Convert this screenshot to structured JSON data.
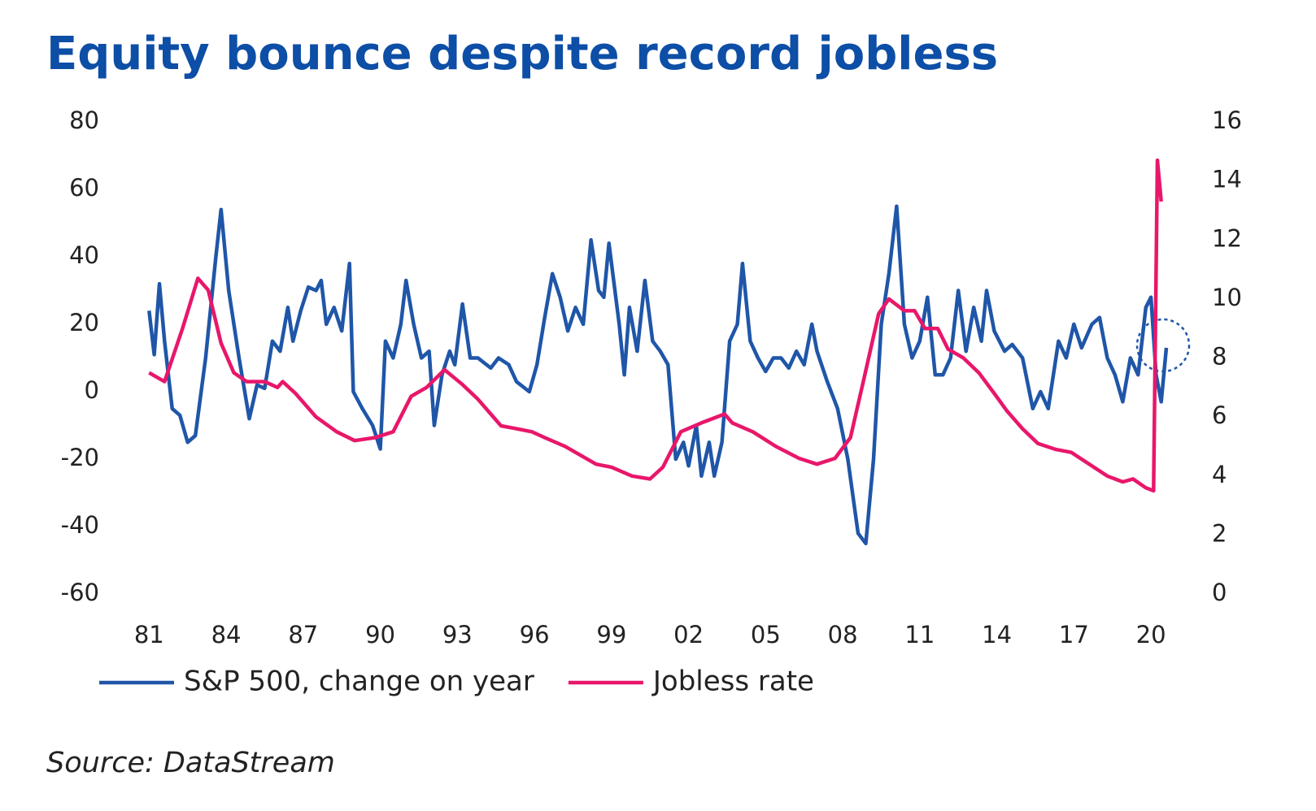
{
  "chart_data": {
    "type": "line",
    "title": "Equity bounce despite record jobless",
    "source": "Source: DataStream",
    "xlim": [
      1980.8,
      2021.2
    ],
    "xticks": [
      {
        "value": 1981,
        "label": "81"
      },
      {
        "value": 1984,
        "label": "84"
      },
      {
        "value": 1987,
        "label": "87"
      },
      {
        "value": 1990,
        "label": "90"
      },
      {
        "value": 1993,
        "label": "93"
      },
      {
        "value": 1996,
        "label": "96"
      },
      {
        "value": 1999,
        "label": "99"
      },
      {
        "value": 2002,
        "label": "02"
      },
      {
        "value": 2005,
        "label": "05"
      },
      {
        "value": 2008,
        "label": "08"
      },
      {
        "value": 2011,
        "label": "11"
      },
      {
        "value": 2014,
        "label": "14"
      },
      {
        "value": 2017,
        "label": "17"
      },
      {
        "value": 2020,
        "label": "20"
      }
    ],
    "ylim": [
      -60,
      80
    ],
    "yticks": [
      -60,
      -40,
      -20,
      0,
      20,
      40,
      60,
      80
    ],
    "y2lim": [
      0,
      16
    ],
    "y2ticks": [
      0,
      2,
      4,
      6,
      8,
      10,
      12,
      14,
      16
    ],
    "grid": false,
    "series": [
      {
        "name": "S&P 500, change on year",
        "color": "#1f56a8",
        "x": [
          1981.0,
          1981.2,
          1981.4,
          1981.6,
          1981.9,
          1982.2,
          1982.5,
          1982.8,
          1983.2,
          1983.6,
          1983.8,
          1984.1,
          1984.5,
          1984.9,
          1985.2,
          1985.5,
          1985.8,
          1986.1,
          1986.4,
          1986.6,
          1986.9,
          1987.2,
          1987.5,
          1987.7,
          1987.9,
          1988.2,
          1988.5,
          1988.8,
          1988.95,
          1989.3,
          1989.7,
          1990.0,
          1990.2,
          1990.5,
          1990.8,
          1991.0,
          1991.3,
          1991.6,
          1991.9,
          1992.1,
          1992.4,
          1992.7,
          1992.9,
          1993.2,
          1993.5,
          1993.8,
          1994.3,
          1994.6,
          1995.0,
          1995.3,
          1995.8,
          1996.1,
          1996.4,
          1996.7,
          1997.0,
          1997.3,
          1997.6,
          1997.9,
          1998.2,
          1998.5,
          1998.7,
          1998.9,
          1999.3,
          1999.5,
          1999.7,
          2000.0,
          2000.3,
          2000.6,
          2000.9,
          2001.2,
          2001.5,
          2001.8,
          2002.0,
          2002.3,
          2002.5,
          2002.8,
          2003.0,
          2003.3,
          2003.6,
          2003.9,
          2004.1,
          2004.4,
          2004.7,
          2005.0,
          2005.3,
          2005.6,
          2005.9,
          2006.2,
          2006.5,
          2006.8,
          2007.0,
          2007.4,
          2007.8,
          2008.2,
          2008.6,
          2008.9,
          2009.2,
          2009.5,
          2009.8,
          2010.1,
          2010.4,
          2010.7,
          2011.0,
          2011.3,
          2011.6,
          2011.9,
          2012.2,
          2012.5,
          2012.8,
          2013.1,
          2013.4,
          2013.6,
          2013.9,
          2014.3,
          2014.6,
          2015.0,
          2015.4,
          2015.7,
          2016.0,
          2016.4,
          2016.7,
          2017.0,
          2017.3,
          2017.7,
          2018.0,
          2018.3,
          2018.6,
          2018.9,
          2019.2,
          2019.5,
          2019.8,
          2020.0,
          2020.2,
          2020.4,
          2020.6
        ],
        "values": [
          24,
          11,
          32,
          15,
          -5,
          -7,
          -15,
          -13,
          10,
          40,
          54,
          30,
          10,
          -8,
          2,
          1,
          15,
          12,
          25,
          15,
          24,
          31,
          30,
          33,
          20,
          25,
          18,
          38,
          0,
          -5,
          -10,
          -17,
          15,
          10,
          20,
          33,
          20,
          10,
          12,
          -10,
          5,
          12,
          8,
          26,
          10,
          10,
          7,
          10,
          8,
          3,
          0,
          8,
          22,
          35,
          28,
          18,
          25,
          20,
          45,
          30,
          28,
          44,
          20,
          5,
          25,
          12,
          33,
          15,
          12,
          8,
          -20,
          -15,
          -22,
          -10,
          -25,
          -15,
          -25,
          -15,
          15,
          20,
          38,
          15,
          10,
          6,
          10,
          10,
          7,
          12,
          8,
          20,
          12,
          3,
          -5,
          -20,
          -42,
          -45,
          -20,
          20,
          35,
          55,
          20,
          10,
          15,
          28,
          5,
          5,
          10,
          30,
          12,
          25,
          15,
          30,
          18,
          12,
          14,
          10,
          -5,
          0,
          -5,
          15,
          10,
          20,
          13,
          20,
          22,
          10,
          5,
          -3,
          10,
          5,
          25,
          28,
          5,
          -3,
          13
        ]
      },
      {
        "name": "Jobless rate",
        "color": "#e8176a",
        "axis": "y2",
        "x": [
          1981.0,
          1981.6,
          1982.3,
          1982.9,
          1983.3,
          1983.8,
          1984.3,
          1984.8,
          1985.5,
          1986.0,
          1986.2,
          1986.7,
          1987.5,
          1988.3,
          1989.0,
          1989.8,
          1990.5,
          1991.2,
          1991.8,
          1992.5,
          1993.2,
          1993.8,
          1994.7,
          1995.3,
          1995.9,
          1996.4,
          1997.2,
          1997.8,
          1998.4,
          1999.0,
          1999.8,
          2000.5,
          2001.0,
          2001.7,
          2002.5,
          2003.4,
          2003.7,
          2004.5,
          2005.4,
          2006.3,
          2007.0,
          2007.7,
          2008.3,
          2008.8,
          2009.4,
          2009.8,
          2010.4,
          2010.8,
          2011.2,
          2011.7,
          2012.1,
          2012.7,
          2013.3,
          2013.9,
          2014.4,
          2015.0,
          2015.6,
          2016.3,
          2016.9,
          2017.6,
          2018.3,
          2018.9,
          2019.3,
          2019.8,
          2020.1,
          2020.25,
          2020.4
        ],
        "values": [
          7.5,
          7.2,
          9,
          10.7,
          10.3,
          8.5,
          7.5,
          7.2,
          7.2,
          7.0,
          7.2,
          6.8,
          6.0,
          5.5,
          5.2,
          5.3,
          5.5,
          6.7,
          7.0,
          7.6,
          7.1,
          6.6,
          5.7,
          5.6,
          5.5,
          5.3,
          5.0,
          4.7,
          4.4,
          4.3,
          4.0,
          3.9,
          4.3,
          5.5,
          5.8,
          6.1,
          5.8,
          5.5,
          5.0,
          4.6,
          4.4,
          4.6,
          5.3,
          7.2,
          9.5,
          10.0,
          9.6,
          9.6,
          9.0,
          9.0,
          8.3,
          8.0,
          7.5,
          6.8,
          6.2,
          5.6,
          5.1,
          4.9,
          4.8,
          4.4,
          4.0,
          3.8,
          3.9,
          3.6,
          3.5,
          14.7,
          13.3
        ]
      }
    ]
  }
}
